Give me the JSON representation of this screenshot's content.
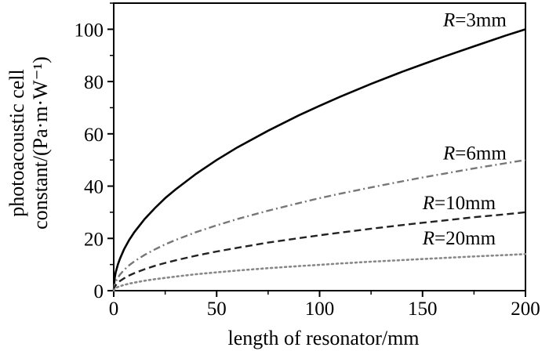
{
  "chart_data": {
    "type": "line",
    "title": "",
    "xlabel": "length of resonator/mm",
    "ylabel_line1": "photoacoustic cell",
    "ylabel_line2": "constant/(Pa·m·W⁻¹)",
    "xlim": [
      0,
      200
    ],
    "ylim": [
      0,
      110
    ],
    "xticks": [
      0,
      50,
      100,
      150,
      200
    ],
    "yticks": [
      0,
      20,
      40,
      60,
      80,
      100
    ],
    "grid": false,
    "series": [
      {
        "name": "R=3mm",
        "label_prefix": "R",
        "label_suffix": "=3mm",
        "style": "solid",
        "color": "#000000",
        "x": [
          0,
          0.5,
          1,
          2,
          3,
          5,
          7.5,
          10,
          15,
          20,
          25,
          30,
          40,
          50,
          60,
          75,
          90,
          100,
          110,
          125,
          140,
          150,
          160,
          175,
          190,
          200
        ],
        "y": [
          0,
          5.0,
          7.1,
          10.0,
          12.2,
          15.8,
          19.4,
          22.4,
          27.4,
          31.6,
          35.4,
          38.7,
          44.7,
          50.0,
          54.8,
          61.2,
          67.1,
          70.7,
          74.2,
          79.1,
          83.7,
          86.6,
          89.4,
          93.5,
          97.5,
          100.0
        ],
        "label_anchor": [
          160,
          100
        ]
      },
      {
        "name": "R=6mm",
        "label_prefix": "R",
        "label_suffix": "=6mm",
        "style": "dashdot",
        "color": "#777777",
        "x": [
          0,
          0.5,
          1,
          2,
          3,
          5,
          7.5,
          10,
          15,
          20,
          25,
          30,
          40,
          50,
          60,
          75,
          90,
          100,
          110,
          125,
          140,
          150,
          160,
          175,
          190,
          200
        ],
        "y": [
          0,
          2.5,
          3.5,
          5.0,
          6.1,
          7.9,
          9.7,
          11.2,
          13.7,
          15.8,
          17.7,
          19.4,
          22.4,
          25.0,
          27.4,
          30.6,
          33.5,
          35.4,
          37.1,
          39.5,
          41.8,
          43.3,
          44.7,
          46.8,
          48.7,
          50.0
        ],
        "label_anchor": [
          160,
          49
        ]
      },
      {
        "name": "R=10mm",
        "label_prefix": "R",
        "label_suffix": "=10mm",
        "style": "dash",
        "color": "#222222",
        "x": [
          0,
          0.5,
          1,
          2,
          3,
          5,
          7.5,
          10,
          15,
          20,
          25,
          30,
          40,
          50,
          60,
          75,
          90,
          100,
          110,
          125,
          140,
          150,
          160,
          175,
          190,
          200
        ],
        "y": [
          0,
          1.5,
          2.1,
          3.0,
          3.7,
          4.7,
          5.8,
          6.7,
          8.2,
          9.5,
          10.6,
          11.6,
          13.4,
          15.0,
          16.4,
          18.4,
          20.1,
          21.2,
          22.2,
          23.7,
          25.1,
          26.0,
          26.8,
          28.1,
          29.2,
          30.0
        ],
        "label_anchor": [
          150,
          30
        ]
      },
      {
        "name": "R=20mm",
        "label_prefix": "R",
        "label_suffix": "=20mm",
        "style": "dot",
        "color": "#888888",
        "x": [
          0,
          0.5,
          1,
          2,
          3,
          5,
          7.5,
          10,
          15,
          20,
          25,
          30,
          40,
          50,
          60,
          75,
          90,
          100,
          110,
          125,
          140,
          150,
          160,
          175,
          190,
          200
        ],
        "y": [
          0,
          0.7,
          1.0,
          1.4,
          1.7,
          2.2,
          2.7,
          3.1,
          3.8,
          4.4,
          4.9,
          5.4,
          6.3,
          7.0,
          7.7,
          8.6,
          9.4,
          9.9,
          10.4,
          11.1,
          11.7,
          12.1,
          12.5,
          13.1,
          13.6,
          14.0
        ],
        "label_anchor": [
          150,
          16.5
        ]
      }
    ]
  }
}
